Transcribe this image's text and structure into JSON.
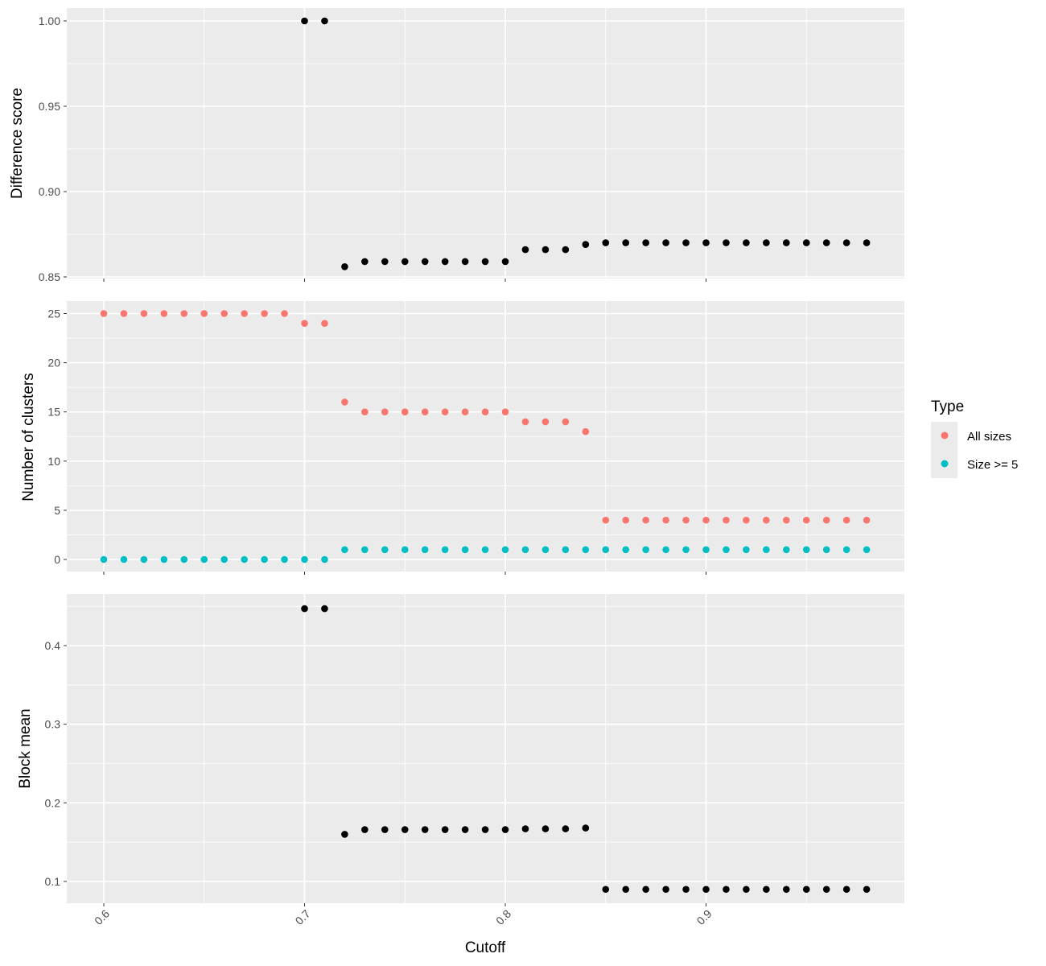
{
  "chart_data": [
    {
      "type": "scatter",
      "panel": "top",
      "ylabel": "Difference score",
      "ylim": [
        0.85,
        1.0
      ],
      "yticks": [
        "0.85",
        "0.90",
        "0.95",
        "1.00"
      ],
      "grid": true,
      "series": [
        {
          "color": "#000000",
          "x": [
            0.7,
            0.71,
            0.72,
            0.73,
            0.74,
            0.75,
            0.76,
            0.77,
            0.78,
            0.79,
            0.8,
            0.81,
            0.82,
            0.83,
            0.84,
            0.85,
            0.86,
            0.87,
            0.88,
            0.89,
            0.9,
            0.91,
            0.92,
            0.93,
            0.94,
            0.95,
            0.96,
            0.97,
            0.98
          ],
          "y": [
            1.0,
            1.0,
            0.856,
            0.859,
            0.859,
            0.859,
            0.859,
            0.859,
            0.859,
            0.859,
            0.859,
            0.866,
            0.866,
            0.866,
            0.869,
            0.87,
            0.87,
            0.87,
            0.87,
            0.87,
            0.87,
            0.87,
            0.87,
            0.87,
            0.87,
            0.87,
            0.87,
            0.87,
            0.87
          ]
        }
      ]
    },
    {
      "type": "scatter",
      "panel": "middle",
      "ylabel": "Number of clusters",
      "ylim": [
        0,
        25
      ],
      "yticks": [
        "0",
        "5",
        "10",
        "15",
        "20",
        "25"
      ],
      "grid": true,
      "series": [
        {
          "name": "All sizes",
          "color": "#f8766d",
          "x": [
            0.6,
            0.61,
            0.62,
            0.63,
            0.64,
            0.65,
            0.66,
            0.67,
            0.68,
            0.69,
            0.7,
            0.71,
            0.72,
            0.73,
            0.74,
            0.75,
            0.76,
            0.77,
            0.78,
            0.79,
            0.8,
            0.81,
            0.82,
            0.83,
            0.84,
            0.85,
            0.86,
            0.87,
            0.88,
            0.89,
            0.9,
            0.91,
            0.92,
            0.93,
            0.94,
            0.95,
            0.96,
            0.97,
            0.98
          ],
          "y": [
            25,
            25,
            25,
            25,
            25,
            25,
            25,
            25,
            25,
            25,
            24,
            24,
            16,
            15,
            15,
            15,
            15,
            15,
            15,
            15,
            15,
            14,
            14,
            14,
            13,
            4,
            4,
            4,
            4,
            4,
            4,
            4,
            4,
            4,
            4,
            4,
            4,
            4,
            4
          ]
        },
        {
          "name": "Size >= 5",
          "color": "#00bfc4",
          "x": [
            0.6,
            0.61,
            0.62,
            0.63,
            0.64,
            0.65,
            0.66,
            0.67,
            0.68,
            0.69,
            0.7,
            0.71,
            0.72,
            0.73,
            0.74,
            0.75,
            0.76,
            0.77,
            0.78,
            0.79,
            0.8,
            0.81,
            0.82,
            0.83,
            0.84,
            0.85,
            0.86,
            0.87,
            0.88,
            0.89,
            0.9,
            0.91,
            0.92,
            0.93,
            0.94,
            0.95,
            0.96,
            0.97,
            0.98
          ],
          "y": [
            0,
            0,
            0,
            0,
            0,
            0,
            0,
            0,
            0,
            0,
            0,
            0,
            1,
            1,
            1,
            1,
            1,
            1,
            1,
            1,
            1,
            1,
            1,
            1,
            1,
            1,
            1,
            1,
            1,
            1,
            1,
            1,
            1,
            1,
            1,
            1,
            1,
            1,
            1
          ]
        }
      ]
    },
    {
      "type": "scatter",
      "panel": "bottom",
      "ylabel": "Block mean",
      "xlabel": "Cutoff",
      "ylim": [
        0.1,
        0.4
      ],
      "yticks": [
        "0.1",
        "0.2",
        "0.3",
        "0.4"
      ],
      "grid": true,
      "series": [
        {
          "color": "#000000",
          "x": [
            0.7,
            0.71,
            0.72,
            0.73,
            0.74,
            0.75,
            0.76,
            0.77,
            0.78,
            0.79,
            0.8,
            0.81,
            0.82,
            0.83,
            0.84,
            0.85,
            0.86,
            0.87,
            0.88,
            0.89,
            0.9,
            0.91,
            0.92,
            0.93,
            0.94,
            0.95,
            0.96,
            0.97,
            0.98
          ],
          "y": [
            0.447,
            0.447,
            0.16,
            0.166,
            0.166,
            0.166,
            0.166,
            0.166,
            0.166,
            0.166,
            0.166,
            0.167,
            0.167,
            0.167,
            0.168,
            0.09,
            0.09,
            0.09,
            0.09,
            0.09,
            0.09,
            0.09,
            0.09,
            0.09,
            0.09,
            0.09,
            0.09,
            0.09,
            0.09
          ]
        }
      ]
    }
  ],
  "shared_x": {
    "label": "Cutoff",
    "ticks": [
      "0.6",
      "0.7",
      "0.8",
      "0.9"
    ],
    "tick_values": [
      0.6,
      0.7,
      0.8,
      0.9
    ],
    "range": [
      0.6,
      0.98
    ]
  },
  "legend": {
    "title": "Type",
    "placement": "right",
    "items": [
      {
        "label": "All sizes",
        "color": "#f8766d"
      },
      {
        "label": "Size >= 5",
        "color": "#00bfc4"
      }
    ]
  },
  "colors": {
    "panel_bg": "#ebebeb",
    "grid": "#ffffff",
    "tick": "#333333",
    "tick_label": "#4d4d4d"
  }
}
